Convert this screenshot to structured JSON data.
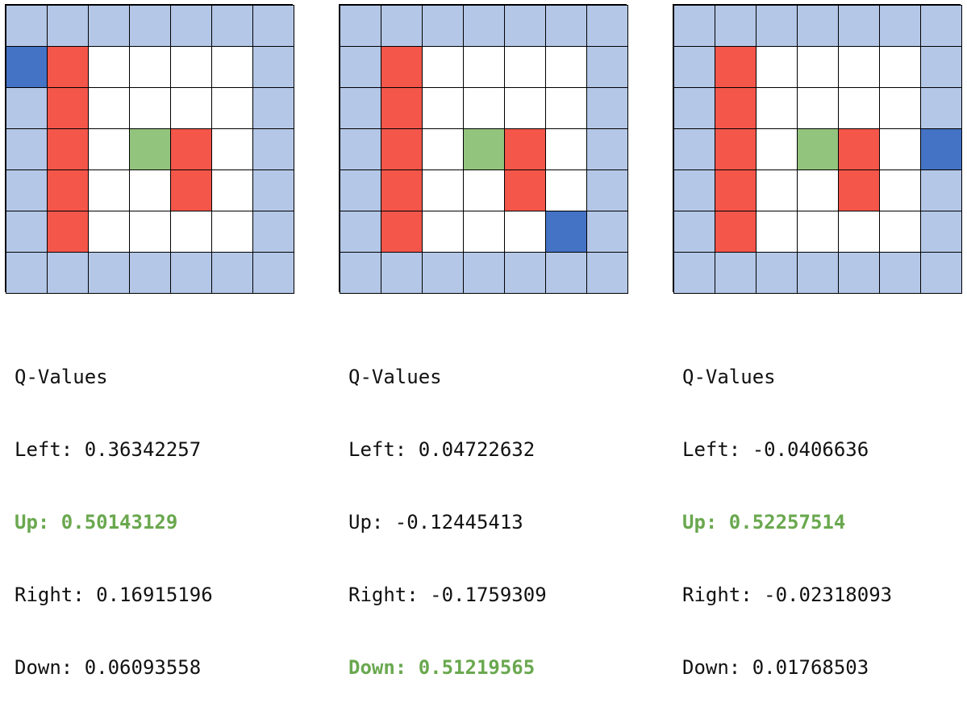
{
  "colors": {
    "wall": "#b4c7e7",
    "empty": "#ffffff",
    "hazard": "#f4564a",
    "goal": "#93c47d",
    "agent": "#4472c4",
    "best_text": "#6aa84f"
  },
  "panels": [
    {
      "grid": [
        [
          "W",
          "W",
          "W",
          "W",
          "W",
          "W",
          "W"
        ],
        [
          "A",
          "H",
          "E",
          "E",
          "E",
          "E",
          "W"
        ],
        [
          "W",
          "H",
          "E",
          "E",
          "E",
          "E",
          "W"
        ],
        [
          "W",
          "H",
          "E",
          "G",
          "H",
          "E",
          "W"
        ],
        [
          "W",
          "H",
          "E",
          "E",
          "H",
          "E",
          "W"
        ],
        [
          "W",
          "H",
          "E",
          "E",
          "E",
          "E",
          "W"
        ],
        [
          "W",
          "W",
          "W",
          "W",
          "W",
          "W",
          "W"
        ]
      ],
      "q_title": "Q-Values",
      "q_lines": [
        {
          "text": "Left: 0.36342257",
          "best": false
        },
        {
          "text": "Up: 0.50143129",
          "best": true
        },
        {
          "text": "Right: 0.16915196",
          "best": false
        },
        {
          "text": "Down: 0.06093558",
          "best": false
        }
      ]
    },
    {
      "grid": [
        [
          "W",
          "W",
          "W",
          "W",
          "W",
          "W",
          "W"
        ],
        [
          "W",
          "H",
          "E",
          "E",
          "E",
          "E",
          "W"
        ],
        [
          "W",
          "H",
          "E",
          "E",
          "E",
          "E",
          "W"
        ],
        [
          "W",
          "H",
          "E",
          "G",
          "H",
          "E",
          "W"
        ],
        [
          "W",
          "H",
          "E",
          "E",
          "H",
          "E",
          "W"
        ],
        [
          "W",
          "H",
          "E",
          "E",
          "E",
          "A",
          "W"
        ],
        [
          "W",
          "W",
          "W",
          "W",
          "W",
          "W",
          "W"
        ]
      ],
      "q_title": "Q-Values",
      "q_lines": [
        {
          "text": "Left: 0.04722632",
          "best": false
        },
        {
          "text": "Up: -0.12445413",
          "best": false
        },
        {
          "text": "Right: -0.1759309",
          "best": false
        },
        {
          "text": "Down: 0.51219565",
          "best": true
        }
      ]
    },
    {
      "grid": [
        [
          "W",
          "W",
          "W",
          "W",
          "W",
          "W",
          "W"
        ],
        [
          "W",
          "H",
          "E",
          "E",
          "E",
          "E",
          "W"
        ],
        [
          "W",
          "H",
          "E",
          "E",
          "E",
          "E",
          "W"
        ],
        [
          "W",
          "H",
          "E",
          "G",
          "H",
          "E",
          "A"
        ],
        [
          "W",
          "H",
          "E",
          "E",
          "H",
          "E",
          "W"
        ],
        [
          "W",
          "H",
          "E",
          "E",
          "E",
          "E",
          "W"
        ],
        [
          "W",
          "W",
          "W",
          "W",
          "W",
          "W",
          "W"
        ]
      ],
      "q_title": "Q-Values",
      "q_lines": [
        {
          "text": "Left: -0.0406636",
          "best": false
        },
        {
          "text": "Up: 0.52257514",
          "best": true
        },
        {
          "text": "Right: -0.02318093",
          "best": false
        },
        {
          "text": "Down: 0.01768503",
          "best": false
        }
      ]
    }
  ]
}
